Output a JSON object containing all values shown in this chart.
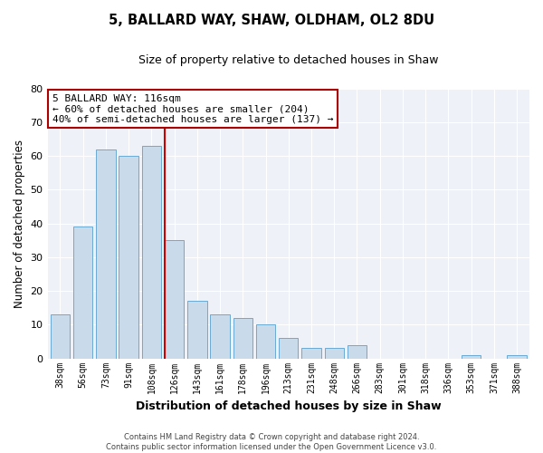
{
  "title": "5, BALLARD WAY, SHAW, OLDHAM, OL2 8DU",
  "subtitle": "Size of property relative to detached houses in Shaw",
  "xlabel": "Distribution of detached houses by size in Shaw",
  "ylabel": "Number of detached properties",
  "bar_color": "#c9daea",
  "bar_edge_color": "#6aaad4",
  "plot_bg_color": "#eef2f8",
  "fig_bg_color": "#ffffff",
  "categories": [
    "38sqm",
    "56sqm",
    "73sqm",
    "91sqm",
    "108sqm",
    "126sqm",
    "143sqm",
    "161sqm",
    "178sqm",
    "196sqm",
    "213sqm",
    "231sqm",
    "248sqm",
    "266sqm",
    "283sqm",
    "301sqm",
    "318sqm",
    "336sqm",
    "353sqm",
    "371sqm",
    "388sqm"
  ],
  "values": [
    13,
    39,
    62,
    60,
    63,
    35,
    17,
    13,
    12,
    10,
    6,
    3,
    3,
    4,
    0,
    0,
    0,
    0,
    1,
    0,
    1
  ],
  "ylim": [
    0,
    80
  ],
  "yticks": [
    0,
    10,
    20,
    30,
    40,
    50,
    60,
    70,
    80
  ],
  "vline_color": "#cc0000",
  "vline_x": 4.575,
  "annotation_title": "5 BALLARD WAY: 116sqm",
  "annotation_line1": "← 60% of detached houses are smaller (204)",
  "annotation_line2": "40% of semi-detached houses are larger (137) →",
  "annotation_box_edge_color": "#aa0000",
  "footer_line1": "Contains HM Land Registry data © Crown copyright and database right 2024.",
  "footer_line2": "Contains public sector information licensed under the Open Government Licence v3.0."
}
